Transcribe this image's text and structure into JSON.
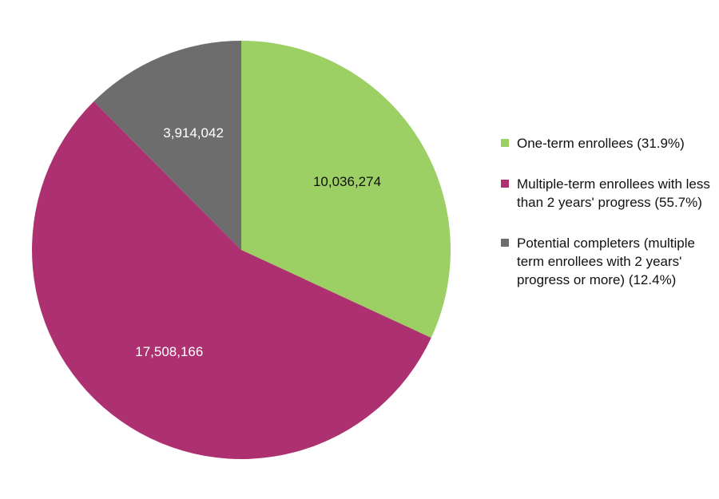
{
  "chart_data": {
    "type": "pie",
    "categories": [
      "One-term enrollees (31.9%)",
      "Multiple-term enrollees with less than 2 years' progress (55.7%)",
      "Potential completers (multiple term enrollees with 2 years' progress or more) (12.4%)"
    ],
    "values": [
      10036274,
      17508166,
      3914042
    ],
    "value_labels": [
      "10,036,274",
      "17,508,166",
      "3,914,042"
    ],
    "colors": [
      "#9ccf64",
      "#ad3170",
      "#6d6d6d"
    ],
    "label_colors": [
      "#111111",
      "#ffffff",
      "#ffffff"
    ],
    "start_angle": "12 o'clock",
    "direction": "clockwise",
    "legend_position": "right",
    "title": ""
  }
}
